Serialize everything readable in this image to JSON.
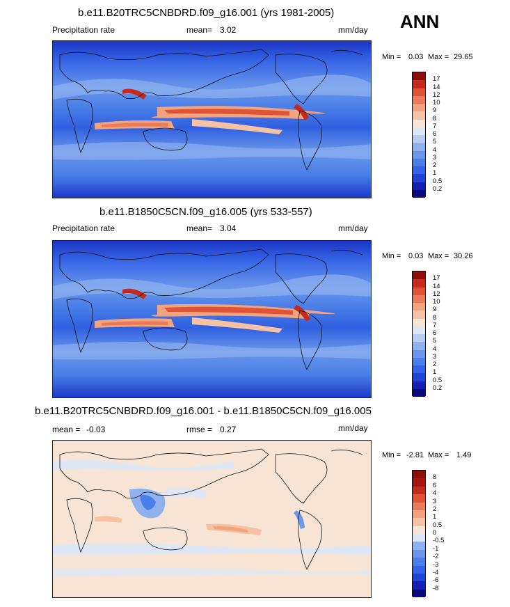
{
  "ann_label": "ANN",
  "panels": [
    {
      "title": "b.e11.B20TRC5CNBDRD.f09_g16.001 (yrs 1981-2005)",
      "left_label": "Precipitation rate",
      "mean_label": "mean=",
      "mean_value": "3.02",
      "units": "mm/day",
      "min_label": "Min =",
      "min_value": "0.03",
      "max_label": "Max =",
      "max_value": "29.65"
    },
    {
      "title": "b.e11.B1850C5CN.f09_g16.005 (yrs 533-557)",
      "left_label": "Precipitation rate",
      "mean_label": "mean=",
      "mean_value": "3.04",
      "units": "mm/day",
      "min_label": "Min =",
      "min_value": "0.03",
      "max_label": "Max =",
      "max_value": "30.26"
    },
    {
      "title": "b.e11.B20TRC5CNBDRD.f09_g16.001 - b.e11.B1850C5CN.f09_g16.005",
      "left_label": "mean =",
      "left_value": "-0.03",
      "rmse_label": "rmse =",
      "rmse_value": "0.27",
      "units": "mm/day",
      "min_label": "Min =",
      "min_value": "-2.81",
      "max_label": "Max =",
      "max_value": "1.49"
    }
  ],
  "chart_data": [
    {
      "type": "heatmap",
      "title": "b.e11.B20TRC5CNBDRD.f09_g16.001 (yrs 1981-2005)",
      "field": "Precipitation rate",
      "units": "mm/day",
      "mean": 3.02,
      "min": 0.03,
      "max": 29.65,
      "colorbar_levels": [
        "0.2",
        "0.5",
        "1",
        "2",
        "3",
        "4",
        "5",
        "6",
        "7",
        "8",
        "9",
        "10",
        "12",
        "14",
        "17"
      ],
      "colors": [
        "#0a0a7a",
        "#1421b0",
        "#1f44d6",
        "#3563e6",
        "#4a7ee8",
        "#6a97ea",
        "#8fb2ee",
        "#b8cdf2",
        "#dde7f6",
        "#f8e4d4",
        "#f7c2a4",
        "#f3a47f",
        "#ea7a58",
        "#df5437",
        "#c52a1c",
        "#8c0f0c"
      ]
    },
    {
      "type": "heatmap",
      "title": "b.e11.B1850C5CN.f09_g16.005 (yrs 533-557)",
      "field": "Precipitation rate",
      "units": "mm/day",
      "mean": 3.04,
      "min": 0.03,
      "max": 30.26,
      "colorbar_levels": [
        "0.2",
        "0.5",
        "1",
        "2",
        "3",
        "4",
        "5",
        "6",
        "7",
        "8",
        "9",
        "10",
        "12",
        "14",
        "17"
      ],
      "colors": [
        "#0a0a7a",
        "#1421b0",
        "#1f44d6",
        "#3563e6",
        "#4a7ee8",
        "#6a97ea",
        "#8fb2ee",
        "#b8cdf2",
        "#dde7f6",
        "#f8e4d4",
        "#f7c2a4",
        "#f3a47f",
        "#ea7a58",
        "#df5437",
        "#c52a1c",
        "#8c0f0c"
      ]
    },
    {
      "type": "heatmap",
      "title": "b.e11.B20TRC5CNBDRD.f09_g16.001 - b.e11.B1850C5CN.f09_g16.005",
      "units": "mm/day",
      "mean": -0.03,
      "rmse": 0.27,
      "min": -2.81,
      "max": 1.49,
      "colorbar_levels": [
        "-8",
        "-6",
        "-4",
        "-3",
        "-2",
        "-1",
        "-0.5",
        "0",
        "0.5",
        "1",
        "2",
        "3",
        "4",
        "6",
        "8"
      ],
      "colors": [
        "#0a0a7a",
        "#1421b0",
        "#1f44d6",
        "#3563e6",
        "#4a7ee8",
        "#6a97ea",
        "#8fb2ee",
        "#dde7f6",
        "#f8e4d4",
        "#f7c2a4",
        "#f3a47f",
        "#ea7a58",
        "#df5437",
        "#c52a1c",
        "#a41812",
        "#8c0f0c"
      ]
    }
  ]
}
